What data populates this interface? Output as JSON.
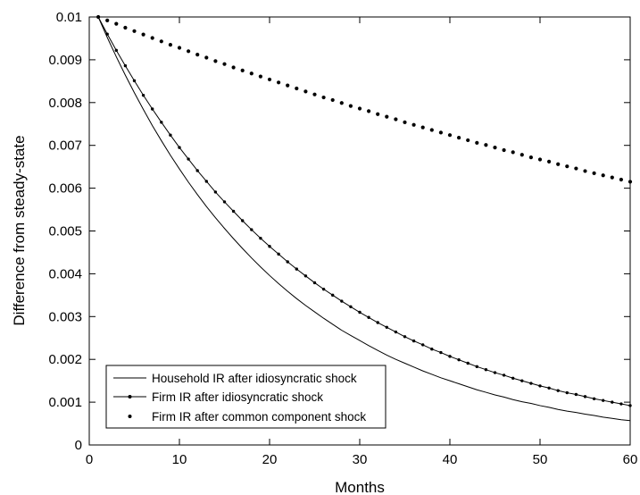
{
  "chart_data": {
    "type": "line",
    "title": "",
    "xlabel": "Months",
    "ylabel": "Difference from steady-state",
    "xlim": [
      0,
      60
    ],
    "ylim": [
      0,
      0.01
    ],
    "x_ticks": [
      0,
      10,
      20,
      30,
      40,
      50,
      60
    ],
    "x_tick_labels": [
      "0",
      "10",
      "20",
      "30",
      "40",
      "50",
      "60"
    ],
    "y_ticks": [
      0,
      0.001,
      0.002,
      0.003,
      0.004,
      0.005,
      0.006,
      0.007,
      0.008,
      0.009,
      0.01
    ],
    "y_tick_labels": [
      "0",
      "0.001",
      "0.002",
      "0.003",
      "0.004",
      "0.005",
      "0.006",
      "0.007",
      "0.008",
      "0.009",
      "0.01"
    ],
    "grid": false,
    "legend_position": "bottom-left",
    "x": [
      1,
      2,
      3,
      4,
      5,
      6,
      7,
      8,
      9,
      10,
      11,
      12,
      13,
      14,
      15,
      16,
      17,
      18,
      19,
      20,
      21,
      22,
      23,
      24,
      25,
      26,
      27,
      28,
      29,
      30,
      31,
      32,
      33,
      34,
      35,
      36,
      37,
      38,
      39,
      40,
      41,
      42,
      43,
      44,
      45,
      46,
      47,
      48,
      49,
      50,
      51,
      52,
      53,
      54,
      55,
      56,
      57,
      58,
      59,
      60
    ],
    "series": [
      {
        "name": "Household IR after idiosyncratic shock",
        "style": "solid-line",
        "values": [
          0.01,
          0.00952,
          0.00907,
          0.00864,
          0.00823,
          0.00784,
          0.00746,
          0.00711,
          0.00677,
          0.00645,
          0.00614,
          0.00585,
          0.00557,
          0.00531,
          0.00506,
          0.00482,
          0.00459,
          0.00437,
          0.00416,
          0.00396,
          0.00377,
          0.00359,
          0.00342,
          0.00326,
          0.00311,
          0.00296,
          0.00282,
          0.00268,
          0.00256,
          0.00244,
          0.00232,
          0.00221,
          0.0021,
          0.002,
          0.00191,
          0.00182,
          0.00173,
          0.00165,
          0.00157,
          0.0015,
          0.00143,
          0.00136,
          0.00129,
          0.00123,
          0.00117,
          0.00112,
          0.00106,
          0.00101,
          0.00097,
          0.00092,
          0.00088,
          0.00083,
          0.00079,
          0.00076,
          0.00072,
          0.00069,
          0.00065,
          0.00062,
          0.00059,
          0.00057
        ]
      },
      {
        "name": "Firm IR after idiosyncratic shock",
        "style": "line-with-dots",
        "values": [
          0.01,
          0.0096,
          0.00922,
          0.00886,
          0.00851,
          0.00817,
          0.00785,
          0.00754,
          0.00724,
          0.00695,
          0.00668,
          0.00641,
          0.00616,
          0.00591,
          0.00568,
          0.00546,
          0.00524,
          0.00503,
          0.00483,
          0.00464,
          0.00446,
          0.00428,
          0.00411,
          0.00395,
          0.00379,
          0.00364,
          0.0035,
          0.00336,
          0.00323,
          0.0031,
          0.00298,
          0.00286,
          0.00275,
          0.00264,
          0.00253,
          0.00243,
          0.00234,
          0.00224,
          0.00216,
          0.00207,
          0.00199,
          0.00191,
          0.00183,
          0.00176,
          0.00169,
          0.00163,
          0.00156,
          0.0015,
          0.00144,
          0.00138,
          0.00133,
          0.00127,
          0.00122,
          0.00118,
          0.00113,
          0.00108,
          0.00104,
          0.001,
          0.00096,
          0.00092
        ]
      },
      {
        "name": "Firm IR after common component shock",
        "style": "dots-only",
        "values": [
          0.01,
          0.00992,
          0.00984,
          0.00975,
          0.00967,
          0.00959,
          0.00951,
          0.00943,
          0.00935,
          0.00928,
          0.0092,
          0.00912,
          0.00905,
          0.00897,
          0.0089,
          0.00882,
          0.00875,
          0.00868,
          0.00861,
          0.00854,
          0.00847,
          0.0084,
          0.00833,
          0.00826,
          0.00819,
          0.00812,
          0.00806,
          0.00799,
          0.00792,
          0.00786,
          0.0078,
          0.00773,
          0.00767,
          0.00761,
          0.00754,
          0.00748,
          0.00742,
          0.00736,
          0.0073,
          0.00724,
          0.00718,
          0.00712,
          0.00706,
          0.00701,
          0.00695,
          0.00689,
          0.00684,
          0.00678,
          0.00672,
          0.00667,
          0.00662,
          0.00656,
          0.00651,
          0.00646,
          0.0064,
          0.00635,
          0.0063,
          0.00625,
          0.0062,
          0.00615
        ]
      }
    ]
  }
}
